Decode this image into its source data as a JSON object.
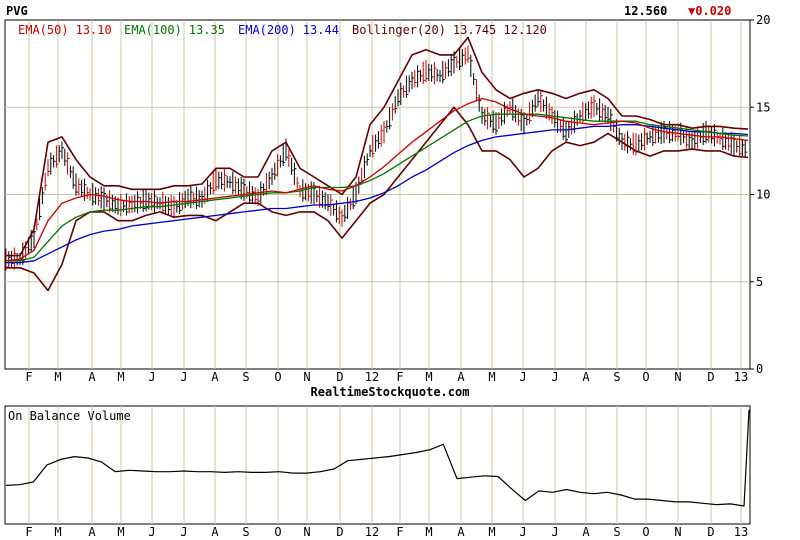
{
  "header": {
    "symbol": "PVG",
    "last_price": "12.560",
    "change": "▼0.020",
    "change_color": "#cc0000"
  },
  "legend": [
    {
      "name": "EMA(50)",
      "value": "13.10",
      "color": "#cc0000"
    },
    {
      "name": "EMA(100)",
      "value": "13.35",
      "color": "#007700"
    },
    {
      "name": "EMA(200)",
      "value": "13.44",
      "color": "#0000cc"
    },
    {
      "name": "Bollinger(20)",
      "value": "13.745 12.120",
      "color": "#660000"
    }
  ],
  "watermark": "RealtimeStockquote.com",
  "chart_data": [
    {
      "type": "line",
      "panel": "price",
      "y_ticks": [
        "20",
        "15",
        "10",
        "5",
        "0"
      ],
      "ylim": [
        0,
        20
      ],
      "x_labels": [
        "F",
        "M",
        "A",
        "M",
        "J",
        "J",
        "A",
        "S",
        "O",
        "N",
        "D",
        "12",
        "F",
        "M",
        "A",
        "M",
        "J",
        "J",
        "A",
        "S",
        "O",
        "N",
        "D",
        "13"
      ],
      "grid": true,
      "colors": {
        "bars_up": "#000000",
        "bars_down": "#cc0000",
        "ema50": "#cc0000",
        "ema100": "#007700",
        "ema200": "#0000cc",
        "bollinger": "#660000"
      },
      "series": [
        {
          "name": "EMA(50)",
          "values": [
            6.2,
            6.3,
            6.8,
            8.5,
            9.5,
            9.8,
            10.0,
            9.9,
            9.7,
            9.6,
            9.6,
            9.5,
            9.6,
            9.6,
            9.7,
            9.8,
            9.9,
            10.0,
            10.1,
            10.2,
            10.1,
            10.3,
            10.5,
            10.3,
            10.2,
            10.5,
            11.0,
            11.6,
            12.3,
            13.0,
            13.6,
            14.2,
            14.8,
            15.2,
            15.5,
            15.3,
            14.9,
            14.6,
            14.5,
            14.4,
            14.2,
            14.1,
            14.0,
            14.1,
            14.2,
            14.1,
            13.8,
            13.6,
            13.5,
            13.4,
            13.3,
            13.3,
            13.2,
            13.1
          ]
        },
        {
          "name": "EMA(100)",
          "values": [
            6.2,
            6.2,
            6.4,
            7.3,
            8.2,
            8.7,
            9.0,
            9.1,
            9.1,
            9.2,
            9.3,
            9.3,
            9.4,
            9.5,
            9.6,
            9.7,
            9.8,
            9.9,
            10.0,
            10.1,
            10.1,
            10.2,
            10.4,
            10.4,
            10.4,
            10.5,
            10.8,
            11.2,
            11.7,
            12.2,
            12.7,
            13.2,
            13.7,
            14.2,
            14.5,
            14.6,
            14.6,
            14.6,
            14.6,
            14.5,
            14.4,
            14.3,
            14.2,
            14.2,
            14.2,
            14.2,
            14.0,
            13.9,
            13.8,
            13.7,
            13.6,
            13.5,
            13.4,
            13.35
          ]
        },
        {
          "name": "EMA(200)",
          "values": [
            6.1,
            6.1,
            6.2,
            6.6,
            7.0,
            7.4,
            7.7,
            7.9,
            8.0,
            8.2,
            8.3,
            8.4,
            8.5,
            8.6,
            8.7,
            8.8,
            8.9,
            9.0,
            9.1,
            9.2,
            9.2,
            9.3,
            9.4,
            9.4,
            9.5,
            9.6,
            9.8,
            10.1,
            10.5,
            11.0,
            11.4,
            11.9,
            12.4,
            12.8,
            13.1,
            13.3,
            13.4,
            13.5,
            13.6,
            13.7,
            13.7,
            13.8,
            13.9,
            13.9,
            14.0,
            14.0,
            13.9,
            13.8,
            13.7,
            13.6,
            13.6,
            13.5,
            13.5,
            13.44
          ]
        },
        {
          "name": "Bollinger(20) upper",
          "values": [
            6.5,
            6.5,
            8.0,
            13.0,
            13.3,
            12.0,
            11.0,
            10.5,
            10.5,
            10.3,
            10.3,
            10.3,
            10.5,
            10.5,
            10.6,
            11.5,
            11.5,
            11.0,
            11.0,
            12.5,
            13.0,
            11.5,
            11.0,
            10.5,
            10.0,
            11.0,
            14.0,
            15.0,
            16.5,
            18.0,
            18.3,
            18.0,
            18.0,
            19.0,
            17.0,
            16.0,
            15.5,
            15.8,
            16.0,
            15.8,
            15.5,
            15.8,
            16.0,
            15.5,
            14.5,
            14.5,
            14.3,
            14.0,
            14.0,
            13.8,
            13.9,
            13.9,
            13.8,
            13.745
          ]
        },
        {
          "name": "Bollinger(20) lower",
          "values": [
            5.8,
            5.8,
            5.5,
            4.5,
            6.0,
            8.5,
            9.0,
            9.0,
            8.5,
            8.5,
            8.8,
            9.0,
            8.7,
            8.8,
            8.8,
            8.5,
            9.0,
            9.5,
            9.5,
            9.0,
            8.8,
            9.0,
            9.0,
            8.5,
            7.5,
            8.5,
            9.5,
            10.0,
            11.0,
            12.0,
            13.0,
            14.0,
            15.0,
            14.0,
            12.5,
            12.5,
            12.0,
            11.0,
            11.5,
            12.5,
            13.0,
            12.8,
            13.0,
            13.5,
            13.0,
            12.5,
            12.2,
            12.5,
            12.5,
            12.6,
            12.5,
            12.5,
            12.2,
            12.12
          ]
        },
        {
          "name": "Price (close)",
          "values": [
            6.2,
            6.3,
            7.5,
            11.5,
            12.5,
            10.5,
            10.0,
            9.7,
            9.3,
            9.4,
            9.6,
            9.5,
            9.2,
            9.8,
            9.7,
            10.8,
            10.7,
            10.2,
            9.8,
            11.0,
            12.5,
            10.2,
            10.0,
            9.5,
            8.6,
            10.0,
            12.5,
            13.5,
            15.5,
            16.5,
            17.0,
            16.8,
            17.5,
            18.0,
            14.5,
            14.0,
            15.0,
            14.0,
            15.5,
            14.5,
            13.5,
            14.5,
            15.0,
            14.5,
            13.0,
            12.8,
            13.3,
            13.5,
            13.5,
            13.0,
            13.5,
            13.2,
            12.8,
            12.56
          ]
        }
      ]
    },
    {
      "type": "line",
      "panel": "volume",
      "title": "On Balance Volume",
      "x_labels": [
        "F",
        "M",
        "A",
        "M",
        "J",
        "J",
        "A",
        "S",
        "O",
        "N",
        "D",
        "12",
        "F",
        "M",
        "A",
        "M",
        "J",
        "J",
        "A",
        "S",
        "O",
        "N",
        "D",
        "13"
      ],
      "grid": true,
      "series": [
        {
          "name": "On Balance Volume",
          "values": [
            0.3,
            0.31,
            0.35,
            0.6,
            0.68,
            0.72,
            0.7,
            0.64,
            0.5,
            0.52,
            0.51,
            0.5,
            0.5,
            0.51,
            0.5,
            0.5,
            0.49,
            0.5,
            0.49,
            0.49,
            0.5,
            0.48,
            0.48,
            0.5,
            0.54,
            0.66,
            0.68,
            0.7,
            0.72,
            0.75,
            0.78,
            0.82,
            0.9,
            0.4,
            0.42,
            0.44,
            0.43,
            0.25,
            0.08,
            0.22,
            0.2,
            0.24,
            0.2,
            0.18,
            0.2,
            0.16,
            0.1,
            0.1,
            0.08,
            0.06,
            0.06,
            0.04,
            0.02,
            0.03,
            0.0,
            1.4
          ]
        }
      ]
    }
  ]
}
